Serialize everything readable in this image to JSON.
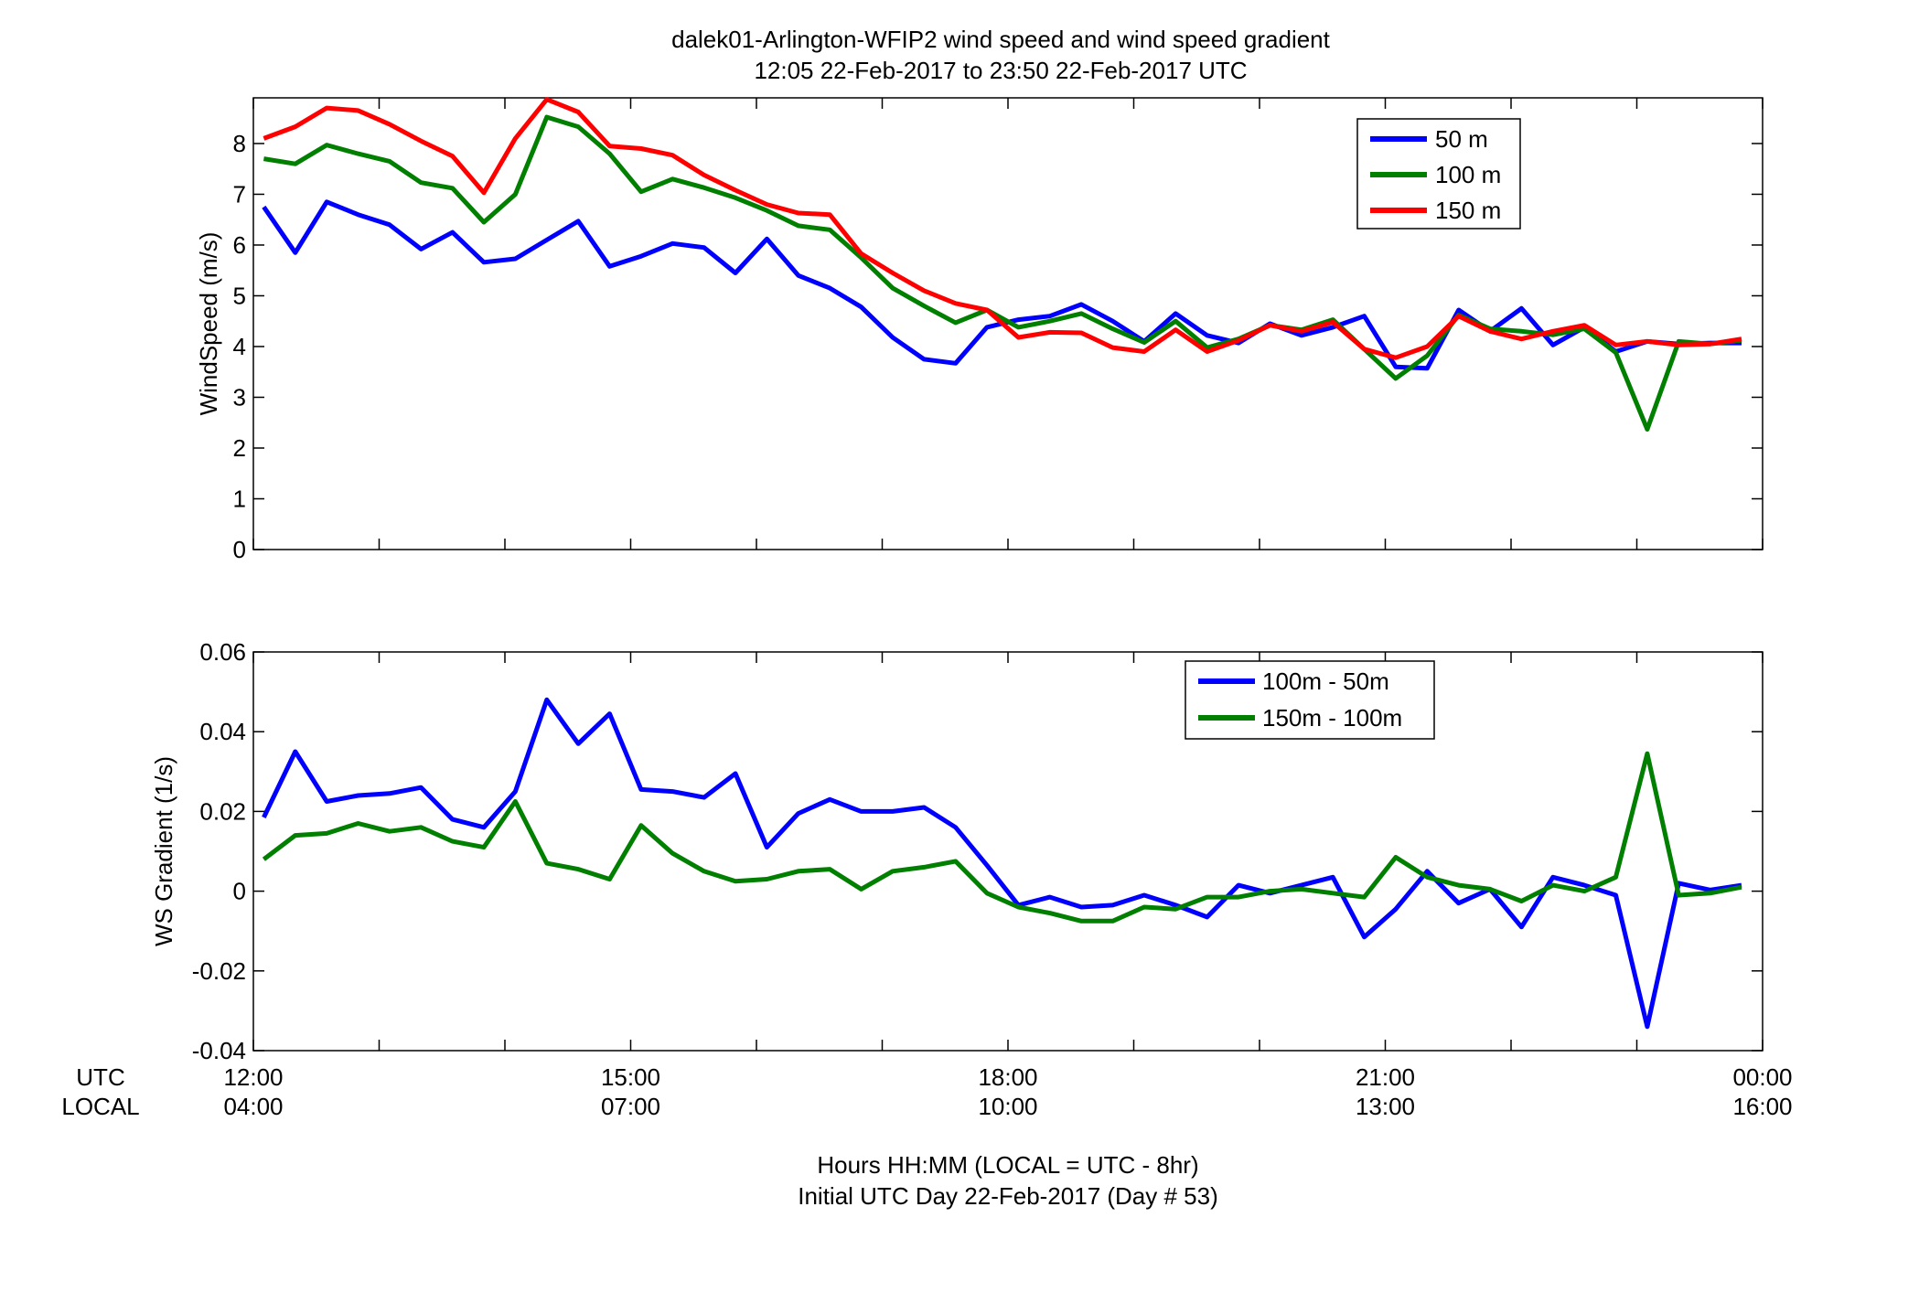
{
  "figure": {
    "title_line1": "dalek01-Arlington-WFIP2  wind speed and wind speed gradient",
    "title_line2": "12:05 22-Feb-2017 to 23:50 22-Feb-2017  UTC",
    "xlabel_line1": "Hours HH:MM  (LOCAL = UTC - 8hr)",
    "xlabel_line2": "Initial UTC Day 22-Feb-2017 (Day # 53)",
    "utc_label": "UTC",
    "local_label": "LOCAL",
    "utc_ticks": [
      "12:00",
      "15:00",
      "18:00",
      "21:00",
      "00:00"
    ],
    "local_ticks": [
      "04:00",
      "07:00",
      "10:00",
      "13:00",
      "16:00"
    ],
    "colors": {
      "blue": "#0000ff",
      "green": "#007f00",
      "red": "#ff0000"
    }
  },
  "chart_data": [
    {
      "type": "line",
      "ylabel": "WindSpeed (m/s)",
      "xlim": [
        12,
        24
      ],
      "ylim": [
        0,
        8.9
      ],
      "yticks": [
        0,
        1,
        2,
        3,
        4,
        5,
        6,
        7,
        8
      ],
      "x_hours_utc": [
        12.083,
        12.333,
        12.583,
        12.833,
        13.083,
        13.333,
        13.583,
        13.833,
        14.083,
        14.333,
        14.583,
        14.833,
        15.083,
        15.333,
        15.583,
        15.833,
        16.083,
        16.333,
        16.583,
        16.833,
        17.083,
        17.333,
        17.583,
        17.833,
        18.083,
        18.333,
        18.583,
        18.833,
        19.083,
        19.333,
        19.583,
        19.833,
        20.083,
        20.333,
        20.583,
        20.833,
        21.083,
        21.333,
        21.583,
        21.833,
        22.083,
        22.333,
        22.583,
        22.833,
        23.083,
        23.333,
        23.583,
        23.833
      ],
      "legend_position": "top-right",
      "series": [
        {
          "name": "50 m",
          "color": "#0000ff",
          "values": [
            6.75,
            5.85,
            6.85,
            6.6,
            6.4,
            5.92,
            6.25,
            5.66,
            5.73,
            6.1,
            6.47,
            5.58,
            5.78,
            6.03,
            5.95,
            5.45,
            6.12,
            5.4,
            5.15,
            4.78,
            4.18,
            3.75,
            3.67,
            4.38,
            4.53,
            4.6,
            4.83,
            4.5,
            4.1,
            4.65,
            4.22,
            4.07,
            4.45,
            4.22,
            4.38,
            4.6,
            3.6,
            3.57,
            4.72,
            4.3,
            4.75,
            4.03,
            4.38,
            3.9,
            4.1,
            4.05,
            4.07,
            4.07
          ]
        },
        {
          "name": "100 m",
          "color": "#007f00",
          "values": [
            7.7,
            7.6,
            7.97,
            7.8,
            7.65,
            7.23,
            7.12,
            6.45,
            7.0,
            8.52,
            8.33,
            7.8,
            7.05,
            7.3,
            7.13,
            6.93,
            6.68,
            6.38,
            6.3,
            5.75,
            5.15,
            4.8,
            4.47,
            4.72,
            4.38,
            4.5,
            4.65,
            4.35,
            4.08,
            4.5,
            3.98,
            4.15,
            4.42,
            4.33,
            4.53,
            3.95,
            3.37,
            3.82,
            4.62,
            4.35,
            4.3,
            4.23,
            4.35,
            3.88,
            2.37,
            4.1,
            4.05,
            4.12
          ]
        },
        {
          "name": "150 m",
          "color": "#ff0000",
          "values": [
            8.1,
            8.33,
            8.7,
            8.65,
            8.38,
            8.05,
            7.75,
            7.03,
            8.1,
            8.87,
            8.62,
            7.95,
            7.9,
            7.77,
            7.38,
            7.08,
            6.8,
            6.63,
            6.6,
            5.83,
            5.45,
            5.1,
            4.85,
            4.72,
            4.18,
            4.28,
            4.27,
            3.98,
            3.9,
            4.33,
            3.9,
            4.12,
            4.42,
            4.3,
            4.48,
            3.95,
            3.78,
            4.0,
            4.6,
            4.3,
            4.15,
            4.3,
            4.42,
            4.03,
            4.1,
            4.03,
            4.05,
            4.15
          ]
        }
      ]
    },
    {
      "type": "line",
      "ylabel": "WS Gradient (1/s)",
      "xlim": [
        12,
        24
      ],
      "ylim": [
        -0.04,
        0.06
      ],
      "yticks": [
        -0.04,
        -0.02,
        0,
        0.02,
        0.04,
        0.06
      ],
      "ytick_labels": [
        "-0.04",
        "-0.02",
        "0",
        "0.02",
        "0.04",
        "0.06"
      ],
      "x_hours_utc": [
        12.083,
        12.333,
        12.583,
        12.833,
        13.083,
        13.333,
        13.583,
        13.833,
        14.083,
        14.333,
        14.583,
        14.833,
        15.083,
        15.333,
        15.583,
        15.833,
        16.083,
        16.333,
        16.583,
        16.833,
        17.083,
        17.333,
        17.583,
        17.833,
        18.083,
        18.333,
        18.583,
        18.833,
        19.083,
        19.333,
        19.583,
        19.833,
        20.083,
        20.333,
        20.583,
        20.833,
        21.083,
        21.333,
        21.583,
        21.833,
        22.083,
        22.333,
        22.583,
        22.833,
        23.083,
        23.333,
        23.583,
        23.833
      ],
      "legend_position": "top-right",
      "series": [
        {
          "name": "100m - 50m",
          "color": "#0000ff",
          "values": [
            0.0185,
            0.035,
            0.0225,
            0.024,
            0.0245,
            0.026,
            0.018,
            0.016,
            0.025,
            0.048,
            0.037,
            0.0445,
            0.0255,
            0.025,
            0.0235,
            0.0295,
            0.011,
            0.0195,
            0.023,
            0.02,
            0.02,
            0.021,
            0.016,
            0.0065,
            -0.0035,
            -0.0015,
            -0.004,
            -0.0035,
            -0.001,
            -0.0035,
            -0.0065,
            0.0015,
            -0.0005,
            0.0015,
            0.0035,
            -0.0115,
            -0.0045,
            0.005,
            -0.003,
            0.0005,
            -0.009,
            0.0035,
            0.0015,
            -0.001,
            -0.034,
            0.002,
            0.0003,
            0.0015
          ]
        },
        {
          "name": "150m - 100m",
          "color": "#007f00",
          "values": [
            0.008,
            0.014,
            0.0145,
            0.017,
            0.015,
            0.016,
            0.0125,
            0.011,
            0.0225,
            0.007,
            0.0055,
            0.003,
            0.0165,
            0.0095,
            0.005,
            0.0025,
            0.003,
            0.005,
            0.0055,
            0.0005,
            0.005,
            0.006,
            0.0075,
            -0.0005,
            -0.004,
            -0.0055,
            -0.0075,
            -0.0075,
            -0.004,
            -0.0045,
            -0.0015,
            -0.0015,
            0.0,
            0.0005,
            -0.0005,
            -0.0015,
            0.0085,
            0.0035,
            0.0015,
            0.0005,
            -0.0025,
            0.0015,
            0.0,
            0.0035,
            0.0345,
            -0.001,
            -0.0005,
            0.001
          ]
        }
      ]
    }
  ]
}
